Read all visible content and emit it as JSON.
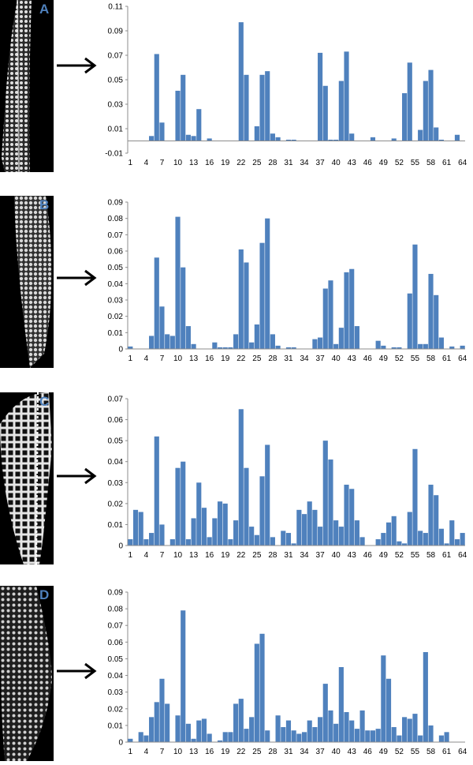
{
  "colors": {
    "bar": "#4f81bd",
    "axis": "#8c8c8c",
    "arrow": "#000000",
    "letter": "#4f81bd"
  },
  "chart_data": [
    {
      "panel_label": "A",
      "type": "bar",
      "x": [
        1,
        2,
        3,
        4,
        5,
        6,
        7,
        8,
        9,
        10,
        11,
        12,
        13,
        14,
        15,
        16,
        17,
        18,
        19,
        20,
        21,
        22,
        23,
        24,
        25,
        26,
        27,
        28,
        29,
        30,
        31,
        32,
        33,
        34,
        35,
        36,
        37,
        38,
        39,
        40,
        41,
        42,
        43,
        44,
        45,
        46,
        47,
        48,
        49,
        50,
        51,
        52,
        53,
        54,
        55,
        56,
        57,
        58,
        59,
        60,
        61,
        62,
        63,
        64
      ],
      "x_tick_labels": [
        "1",
        "4",
        "7",
        "10",
        "13",
        "16",
        "19",
        "22",
        "25",
        "28",
        "31",
        "34",
        "37",
        "40",
        "43",
        "46",
        "49",
        "52",
        "55",
        "58",
        "61",
        "64"
      ],
      "y_tick_labels": [
        "-0.01",
        "0.01",
        "0.03",
        "0.05",
        "0.07",
        "0.09",
        "0.11"
      ],
      "ylim": [
        -0.01,
        0.11
      ],
      "values": [
        0,
        0,
        0,
        0,
        0.004,
        0.071,
        0.015,
        0,
        0,
        0.041,
        0.054,
        0.005,
        0.004,
        0.026,
        0,
        0.002,
        0,
        0,
        0,
        0,
        0,
        0.097,
        0.054,
        0,
        0.012,
        0.054,
        0.057,
        0.006,
        0.003,
        0,
        0.001,
        0.001,
        0,
        0,
        0,
        0,
        0.072,
        0.045,
        0.001,
        0.001,
        0.049,
        0.073,
        0.006,
        0,
        0,
        0,
        0.003,
        0,
        0,
        0,
        0.002,
        0,
        0.039,
        0.064,
        0,
        0.009,
        0.049,
        0.058,
        0.011,
        0.001,
        0,
        0,
        0.005,
        0
      ]
    },
    {
      "panel_label": "B",
      "type": "bar",
      "x": [
        1,
        2,
        3,
        4,
        5,
        6,
        7,
        8,
        9,
        10,
        11,
        12,
        13,
        14,
        15,
        16,
        17,
        18,
        19,
        20,
        21,
        22,
        23,
        24,
        25,
        26,
        27,
        28,
        29,
        30,
        31,
        32,
        33,
        34,
        35,
        36,
        37,
        38,
        39,
        40,
        41,
        42,
        43,
        44,
        45,
        46,
        47,
        48,
        49,
        50,
        51,
        52,
        53,
        54,
        55,
        56,
        57,
        58,
        59,
        60,
        61,
        62,
        63,
        64
      ],
      "x_tick_labels": [
        "1",
        "4",
        "7",
        "10",
        "13",
        "16",
        "19",
        "22",
        "25",
        "28",
        "31",
        "34",
        "37",
        "40",
        "43",
        "46",
        "49",
        "52",
        "55",
        "58",
        "61",
        "64"
      ],
      "y_tick_labels": [
        "0",
        "0.01",
        "0.02",
        "0.03",
        "0.04",
        "0.05",
        "0.06",
        "0.07",
        "0.08",
        "0.09"
      ],
      "ylim": [
        0,
        0.09
      ],
      "values": [
        0.0015,
        0,
        0,
        0,
        0.008,
        0.056,
        0.026,
        0.009,
        0.008,
        0.081,
        0.05,
        0.014,
        0.003,
        0,
        0,
        0,
        0.004,
        0.001,
        0.001,
        0.001,
        0.009,
        0.061,
        0.053,
        0.004,
        0.015,
        0.065,
        0.08,
        0.009,
        0.002,
        0,
        0.001,
        0.001,
        0,
        0,
        0,
        0.006,
        0.007,
        0.037,
        0.042,
        0.003,
        0.013,
        0.047,
        0.049,
        0.014,
        0,
        0,
        0,
        0.005,
        0.002,
        0,
        0.001,
        0.001,
        0,
        0.034,
        0.064,
        0.003,
        0.003,
        0.046,
        0.033,
        0.007,
        0,
        0.0015,
        0,
        0.002
      ]
    },
    {
      "panel_label": "C",
      "type": "bar",
      "x": [
        1,
        2,
        3,
        4,
        5,
        6,
        7,
        8,
        9,
        10,
        11,
        12,
        13,
        14,
        15,
        16,
        17,
        18,
        19,
        20,
        21,
        22,
        23,
        24,
        25,
        26,
        27,
        28,
        29,
        30,
        31,
        32,
        33,
        34,
        35,
        36,
        37,
        38,
        39,
        40,
        41,
        42,
        43,
        44,
        45,
        46,
        47,
        48,
        49,
        50,
        51,
        52,
        53,
        54,
        55,
        56,
        57,
        58,
        59,
        60,
        61,
        62,
        63,
        64
      ],
      "x_tick_labels": [
        "1",
        "4",
        "7",
        "10",
        "13",
        "16",
        "19",
        "22",
        "25",
        "28",
        "31",
        "34",
        "37",
        "40",
        "43",
        "46",
        "49",
        "52",
        "55",
        "58",
        "61",
        "64"
      ],
      "y_tick_labels": [
        "0",
        "0.01",
        "0.02",
        "0.03",
        "0.04",
        "0.05",
        "0.06",
        "0.07"
      ],
      "ylim": [
        0,
        0.07
      ],
      "values": [
        0.003,
        0.017,
        0.016,
        0.003,
        0.006,
        0.052,
        0.01,
        0,
        0.003,
        0.037,
        0.04,
        0.003,
        0.013,
        0.03,
        0.018,
        0.004,
        0.013,
        0.021,
        0.02,
        0.003,
        0.012,
        0.065,
        0.037,
        0.009,
        0.005,
        0.033,
        0.048,
        0.004,
        0,
        0.007,
        0.006,
        0.001,
        0.017,
        0.015,
        0.021,
        0.017,
        0.009,
        0.05,
        0.041,
        0.012,
        0.009,
        0.029,
        0.027,
        0.012,
        0.004,
        0,
        0,
        0.003,
        0.006,
        0.011,
        0.014,
        0.002,
        0.001,
        0.016,
        0.046,
        0.007,
        0.006,
        0.029,
        0.024,
        0.008,
        0.001,
        0.012,
        0.003,
        0.006
      ]
    },
    {
      "panel_label": "D",
      "type": "bar",
      "x": [
        1,
        2,
        3,
        4,
        5,
        6,
        7,
        8,
        9,
        10,
        11,
        12,
        13,
        14,
        15,
        16,
        17,
        18,
        19,
        20,
        21,
        22,
        23,
        24,
        25,
        26,
        27,
        28,
        29,
        30,
        31,
        32,
        33,
        34,
        35,
        36,
        37,
        38,
        39,
        40,
        41,
        42,
        43,
        44,
        45,
        46,
        47,
        48,
        49,
        50,
        51,
        52,
        53,
        54,
        55,
        56,
        57,
        58,
        59,
        60,
        61,
        62,
        63,
        64
      ],
      "x_tick_labels": [
        "1",
        "4",
        "7",
        "10",
        "13",
        "16",
        "19",
        "22",
        "25",
        "28",
        "31",
        "34",
        "37",
        "40",
        "43",
        "46",
        "49",
        "52",
        "55",
        "58",
        "61",
        "64"
      ],
      "y_tick_labels": [
        "0",
        "0.01",
        "0.02",
        "0.03",
        "0.04",
        "0.05",
        "0.06",
        "0.07",
        "0.08",
        "0.09"
      ],
      "ylim": [
        0,
        0.09
      ],
      "values": [
        0.002,
        0,
        0.006,
        0.004,
        0.015,
        0.024,
        0.038,
        0.023,
        0,
        0.016,
        0.079,
        0.011,
        0.002,
        0.013,
        0.014,
        0.005,
        0,
        0.001,
        0.006,
        0.006,
        0.023,
        0.026,
        0.008,
        0.015,
        0.059,
        0.065,
        0.007,
        0,
        0.016,
        0.009,
        0.013,
        0.007,
        0.005,
        0.006,
        0.013,
        0.009,
        0.015,
        0.035,
        0.019,
        0.011,
        0.045,
        0.018,
        0.013,
        0.008,
        0.019,
        0.007,
        0.007,
        0.008,
        0.052,
        0.038,
        0.009,
        0.004,
        0.015,
        0.014,
        0.017,
        0.004,
        0.054,
        0.01,
        0,
        0.004,
        0.006,
        0,
        0,
        0
      ]
    }
  ]
}
